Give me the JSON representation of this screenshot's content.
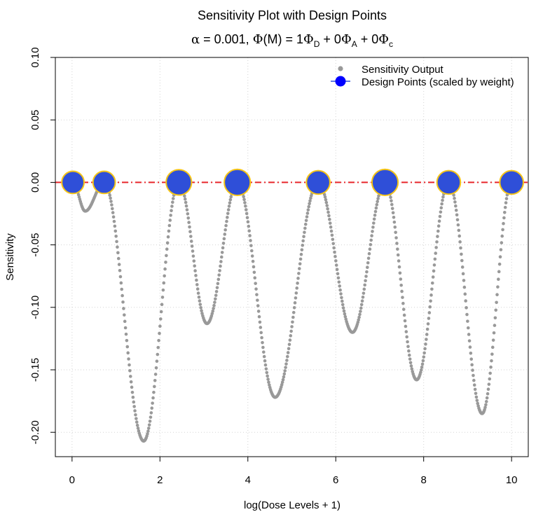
{
  "chart_data": {
    "type": "scatter",
    "title": "Sensitivity Plot with Design Points",
    "subtitle": {
      "alpha_symbol": "α",
      "alpha_text": " = 0.001, ",
      "phi_symbol": "Φ",
      "m_text": "(M)",
      "eq": " = 1",
      "d_sub": "D",
      "plus1": " + 0",
      "a_sub": "A",
      "plus2": " + 0",
      "c_sub": "c"
    },
    "xlabel": "log(Dose Levels + 1)",
    "ylabel": "Sensitivity",
    "xlim": [
      -0.38,
      10.38
    ],
    "ylim": [
      -0.2195,
      0.1
    ]
  },
  "x_ticks": [
    {
      "value": 0,
      "label": "0"
    },
    {
      "value": 2,
      "label": "2"
    },
    {
      "value": 4,
      "label": "4"
    },
    {
      "value": 6,
      "label": "6"
    },
    {
      "value": 8,
      "label": "8"
    },
    {
      "value": 10,
      "label": "10"
    }
  ],
  "y_ticks": [
    {
      "value": 0.1,
      "label": "0.10"
    },
    {
      "value": 0.05,
      "label": "0.05"
    },
    {
      "value": 0.0,
      "label": "0.00"
    },
    {
      "value": -0.05,
      "label": "-0.05"
    },
    {
      "value": -0.1,
      "label": "-0.10"
    },
    {
      "value": -0.15,
      "label": "-0.15"
    },
    {
      "value": -0.2,
      "label": "-0.20"
    }
  ],
  "grid": true,
  "series": [
    {
      "name": "Sensitivity Output",
      "kind": "points",
      "color": "#999999",
      "minima": [
        {
          "x": 0.3,
          "y": -0.023
        },
        {
          "x": 1.63,
          "y": -0.207
        },
        {
          "x": 3.07,
          "y": -0.113
        },
        {
          "x": 4.62,
          "y": -0.172
        },
        {
          "x": 6.38,
          "y": -0.12
        },
        {
          "x": 7.84,
          "y": -0.158
        },
        {
          "x": 9.33,
          "y": -0.185
        }
      ]
    },
    {
      "name": "Design Points (scaled by weight)",
      "kind": "design",
      "fill": "#2f4fd8",
      "stroke": "#f5c518",
      "points": [
        {
          "x": 0.02,
          "y": 0,
          "weight": 0.11
        },
        {
          "x": 0.73,
          "y": 0,
          "weight": 0.11
        },
        {
          "x": 2.43,
          "y": 0,
          "weight": 0.135
        },
        {
          "x": 3.76,
          "y": 0,
          "weight": 0.14
        },
        {
          "x": 5.6,
          "y": 0,
          "weight": 0.12
        },
        {
          "x": 7.12,
          "y": 0,
          "weight": 0.14
        },
        {
          "x": 8.57,
          "y": 0,
          "weight": 0.12
        },
        {
          "x": 10.0,
          "y": 0,
          "weight": 0.12
        }
      ]
    }
  ],
  "reference_line": {
    "y": 0,
    "color": "#e8262b",
    "style": "dashed"
  },
  "legend": {
    "position": "top-right",
    "entries": [
      {
        "label": "Sensitivity Output",
        "color": "#999999"
      },
      {
        "label": "Design Points (scaled by weight)",
        "color": "#0000ff",
        "line_color": "#2f4fd8"
      }
    ]
  }
}
